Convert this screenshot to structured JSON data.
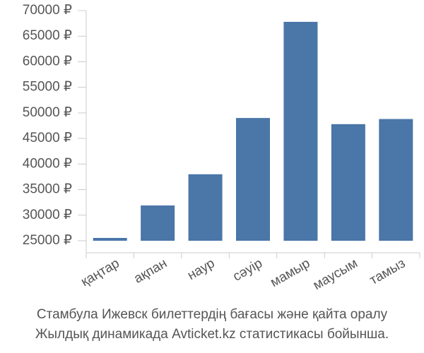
{
  "chart_data": {
    "type": "bar",
    "categories": [
      "қаңтар",
      "ақпан",
      "наур",
      "сәуір",
      "мамыр",
      "маусым",
      "тамыз"
    ],
    "values": [
      25550,
      31900,
      38000,
      49000,
      67800,
      47800,
      48800
    ],
    "color": "#4a76a8",
    "ylim": [
      25000,
      70000
    ],
    "yticks": [
      {
        "value": 25000,
        "label": "25000 ₽"
      },
      {
        "value": 30000,
        "label": "30000 ₽"
      },
      {
        "value": 35000,
        "label": "35000 ₽"
      },
      {
        "value": 40000,
        "label": "40000 ₽"
      },
      {
        "value": 45000,
        "label": "45000 ₽"
      },
      {
        "value": 50000,
        "label": "50000 ₽"
      },
      {
        "value": 55000,
        "label": "55000 ₽"
      },
      {
        "value": 60000,
        "label": "60000 ₽"
      },
      {
        "value": 65000,
        "label": "65000 ₽"
      },
      {
        "value": 70000,
        "label": "70000 ₽"
      }
    ],
    "grid": false,
    "caption": [
      "Стамбула Ижевск билеттердің бағасы және қайта оралу",
      "Жылдық динамикада Avticket.kz статистикасы бойынша."
    ]
  }
}
